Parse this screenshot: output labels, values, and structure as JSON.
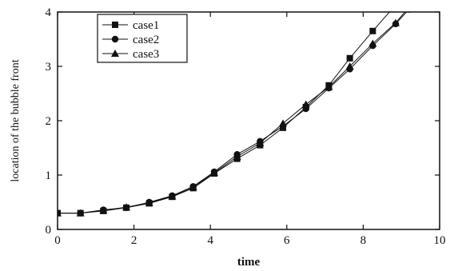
{
  "chart_data": {
    "type": "line",
    "title": "",
    "xlabel": "time",
    "ylabel": "location of the bubble front",
    "xlim": [
      0,
      10
    ],
    "ylim": [
      0,
      4
    ],
    "xticks": [
      "0",
      "2",
      "4",
      "6",
      "8",
      "10"
    ],
    "yticks": [
      "0",
      "1",
      "2",
      "3",
      "4"
    ],
    "grid": false,
    "legend": "top-left",
    "series": [
      {
        "name": "case1",
        "marker": "square",
        "x": [
          0.0,
          0.6,
          1.2,
          1.8,
          2.4,
          3.0,
          3.55,
          4.1,
          4.7,
          5.3,
          5.9,
          6.5,
          7.1,
          7.65,
          8.25,
          8.75
        ],
        "y": [
          0.3,
          0.3,
          0.34,
          0.4,
          0.48,
          0.6,
          0.76,
          1.03,
          1.3,
          1.55,
          1.87,
          2.25,
          2.65,
          3.15,
          3.65,
          4.05
        ]
      },
      {
        "name": "case2",
        "marker": "circle",
        "x": [
          0.0,
          0.6,
          1.2,
          1.8,
          2.4,
          3.0,
          3.55,
          4.1,
          4.7,
          5.3,
          5.9,
          6.5,
          7.1,
          7.65,
          8.25,
          8.85,
          9.2
        ],
        "y": [
          0.3,
          0.3,
          0.36,
          0.4,
          0.5,
          0.62,
          0.79,
          1.06,
          1.38,
          1.62,
          1.9,
          2.22,
          2.6,
          2.95,
          3.38,
          3.78,
          4.05
        ]
      },
      {
        "name": "case3",
        "marker": "triangle",
        "x": [
          0.0,
          0.6,
          1.2,
          1.8,
          2.4,
          3.0,
          3.55,
          4.1,
          4.7,
          5.3,
          5.9,
          6.5,
          7.1,
          7.65,
          8.25,
          8.85,
          9.15
        ],
        "y": [
          0.3,
          0.3,
          0.35,
          0.41,
          0.49,
          0.61,
          0.78,
          1.04,
          1.34,
          1.59,
          1.95,
          2.3,
          2.62,
          3.0,
          3.42,
          3.8,
          4.05
        ]
      }
    ]
  }
}
